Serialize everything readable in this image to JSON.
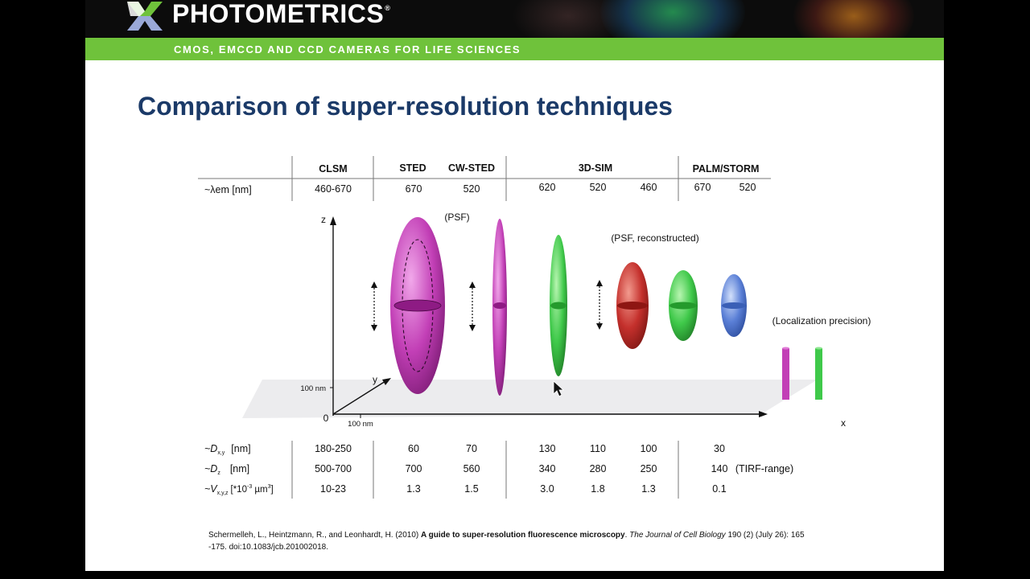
{
  "header": {
    "brand": "PHOTOMETRICS",
    "brand_mark": "®",
    "tagline": "CMOS, EMCCD AND CCD CAMERAS FOR LIFE SCIENCES",
    "logo_icon": "photometrics-x-logo-icon",
    "accent_green": "#6fc23b",
    "title_color": "#1b3a68"
  },
  "slide": {
    "title": "Comparison of super-resolution techniques"
  },
  "table": {
    "row_label_lambda": "~λem  [nm]",
    "headers": {
      "clsm": "CLSM",
      "sted": "STED",
      "cw_sted": "CW-STED",
      "sim": "3D-SIM",
      "palm": "PALM/STORM"
    },
    "lambda": {
      "clsm": "460-670",
      "sted": "670",
      "cw_sted": "520",
      "sim_red": "620",
      "sim_green": "520",
      "sim_blue": "460",
      "palm_1": "670",
      "palm_2": "520"
    },
    "dxy_label": "~D",
    "dxy_sub": "x,y",
    "dxy_unit": "[nm]",
    "dz_label": "~D",
    "dz_sub": "z",
    "dz_unit": "[nm]",
    "v_label": "~V",
    "v_sub": "x,y,z",
    "v_unit": "[*10",
    "v_unit_exp1": "-3",
    "v_unit_mid": " µm",
    "v_unit_exp2": "3",
    "v_unit_end": "]",
    "dxy": {
      "clsm": "180-250",
      "sted": "60",
      "cw_sted": "70",
      "sim_red": "130",
      "sim_green": "110",
      "sim_blue": "100",
      "palm": "30"
    },
    "dz": {
      "clsm": "500-700",
      "sted": "700",
      "cw_sted": "560",
      "sim_red": "340",
      "sim_green": "280",
      "sim_blue": "250",
      "palm": "140",
      "palm_note": "(TIRF-range)"
    },
    "v": {
      "clsm": "10-23",
      "sted": "1.3",
      "cw_sted": "1.5",
      "sim_red": "3.0",
      "sim_green": "1.8",
      "sim_blue": "1.3",
      "palm": "0.1"
    }
  },
  "diagram": {
    "axis_z": "z",
    "axis_y": "y",
    "axis_x": "x",
    "origin": "0",
    "scale_z": "100 nm",
    "scale_x": "100 nm",
    "label_psf": "(PSF)",
    "label_psf_reconstructed": "(PSF, reconstructed)",
    "label_localization": "(Localization precision)",
    "colors": {
      "magenta": "#c23fb6",
      "green": "#3fc94a",
      "red": "#c4302c",
      "blue": "#5a7fd6",
      "floor": "#ececee"
    }
  },
  "citation": {
    "authors": "Schermelleh, L., Heintzmann, R., and Leonhardt, H. (2010) ",
    "article": "A guide to super-resolution fluorescence microscopy",
    "sep": ". ",
    "journal": "The Journal of Cell Biology",
    "rest": " 190 (2) (July 26): 165 -175. doi:10.1083/jcb.201002018."
  }
}
